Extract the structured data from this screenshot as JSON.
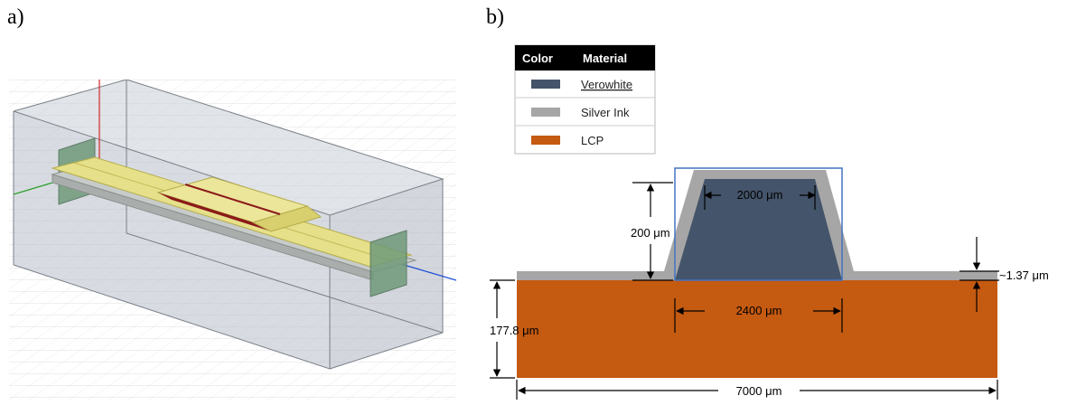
{
  "panels": {
    "a": {
      "label": "a)"
    },
    "b": {
      "label": "b)"
    }
  },
  "legend": {
    "headers": {
      "color": "Color",
      "material": "Material"
    },
    "rows": [
      {
        "material": "Verowhite",
        "color": "#44546a"
      },
      {
        "material": "Silver Ink",
        "color": "#a6a6a6"
      },
      {
        "material": "LCP",
        "color": "#c55a11"
      }
    ]
  },
  "dimensions": {
    "top_width": "2000 μm",
    "height": "200 μm",
    "bottom_width": "2400 μm",
    "substrate_thickness": "177.8 μm",
    "total_width": "7000 μm",
    "ink_thickness": "~1.37 μm"
  },
  "colors": {
    "verowhite": "#44546a",
    "silver_ink": "#a6a6a6",
    "lcp": "#c55a11",
    "highlight_box": "#4472c4",
    "conductor_3d": "#e6e08a",
    "conductor_dark": "#8b1a1a",
    "port_green": "#6f9a7a"
  }
}
